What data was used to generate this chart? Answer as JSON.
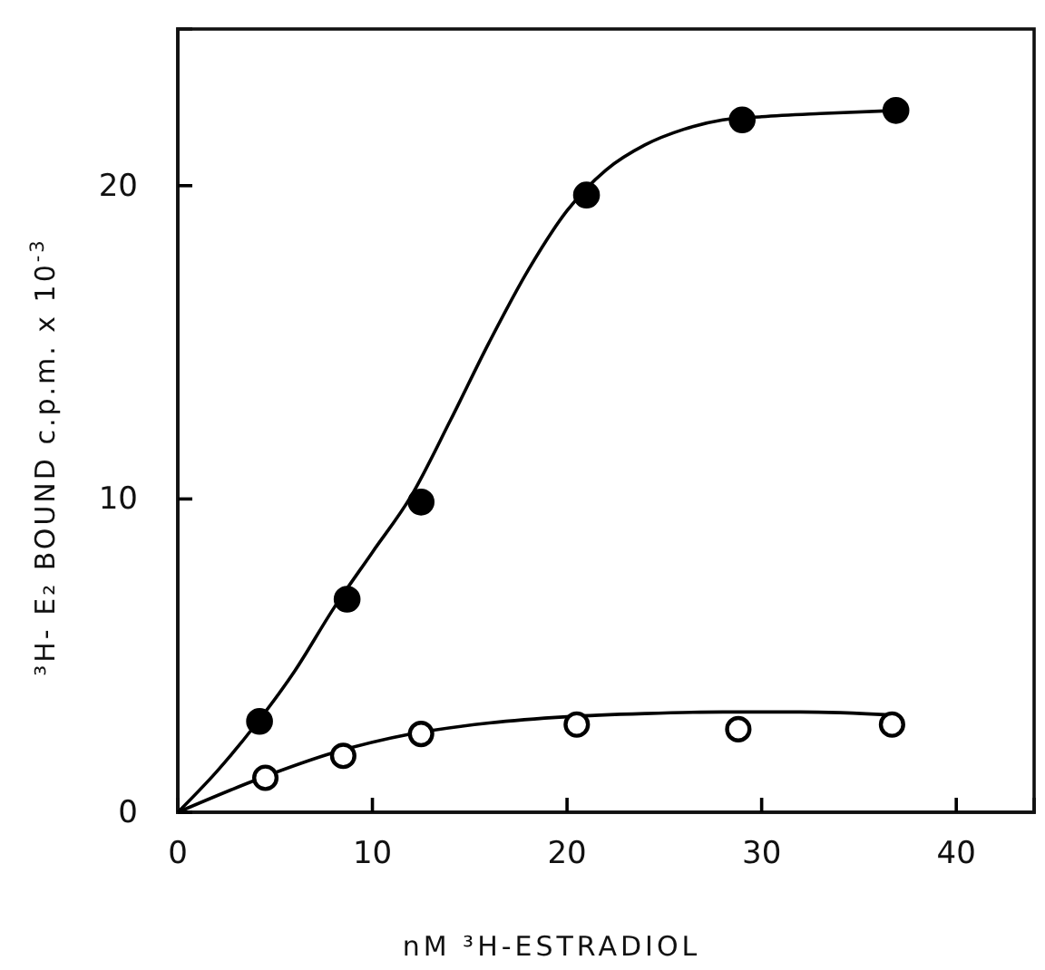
{
  "chart_data": {
    "type": "scatter",
    "xlabel": "nM ³H-ESTRADIOL",
    "ylabel": "³H- E₂ BOUND   c.p.m. x 10$^{-3}$",
    "xlim": [
      0,
      44
    ],
    "xticks": [
      0,
      10,
      20,
      30,
      40
    ],
    "ylim": [
      0,
      25
    ],
    "yticks": [
      0,
      10,
      20
    ],
    "grid": false,
    "marker": "circle",
    "series": [
      {
        "color": "#000000",
        "x": [
          4.2,
          8.7,
          12.5,
          21.0,
          29.0,
          36.9
        ],
        "values": [
          2.9,
          6.8,
          9.9,
          19.7,
          22.1,
          22.4
        ]
      },
      {
        "color": "#000000",
        "x": [
          4.5,
          8.5,
          12.5,
          20.5,
          28.8,
          36.7
        ],
        "values": [
          1.1,
          1.8,
          2.5,
          2.8,
          2.65,
          2.8
        ]
      },
      {
        "type": "line",
        "color": "#000000",
        "marker": "none",
        "x": [
          0,
          2,
          4,
          6,
          8,
          10,
          12,
          14,
          16,
          18,
          20,
          22,
          24,
          26,
          28,
          30,
          33,
          36.9
        ],
        "values": [
          0,
          1.3,
          2.8,
          4.5,
          6.5,
          8.3,
          10.1,
          12.5,
          15,
          17.3,
          19.2,
          20.5,
          21.3,
          21.8,
          22.1,
          22.2,
          22.3,
          22.4
        ]
      },
      {
        "type": "line",
        "color": "#000000",
        "marker": "none",
        "x": [
          0,
          4.3,
          8,
          12,
          16,
          20,
          24,
          28,
          32,
          36.9
        ],
        "values": [
          0,
          1.1,
          1.9,
          2.5,
          2.85,
          3.05,
          3.15,
          3.2,
          3.2,
          3.1
        ]
      }
    ]
  }
}
